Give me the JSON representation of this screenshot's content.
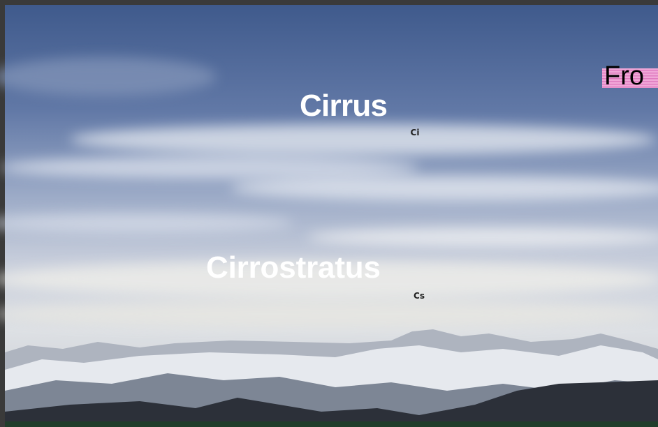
{
  "labels": {
    "cirrus": "Cirrus",
    "cirrus_abbr": "Ci",
    "cirrostratus": "Cirrostratus",
    "cirrostratus_abbr": "Cs",
    "corner_tag": "Fro"
  }
}
